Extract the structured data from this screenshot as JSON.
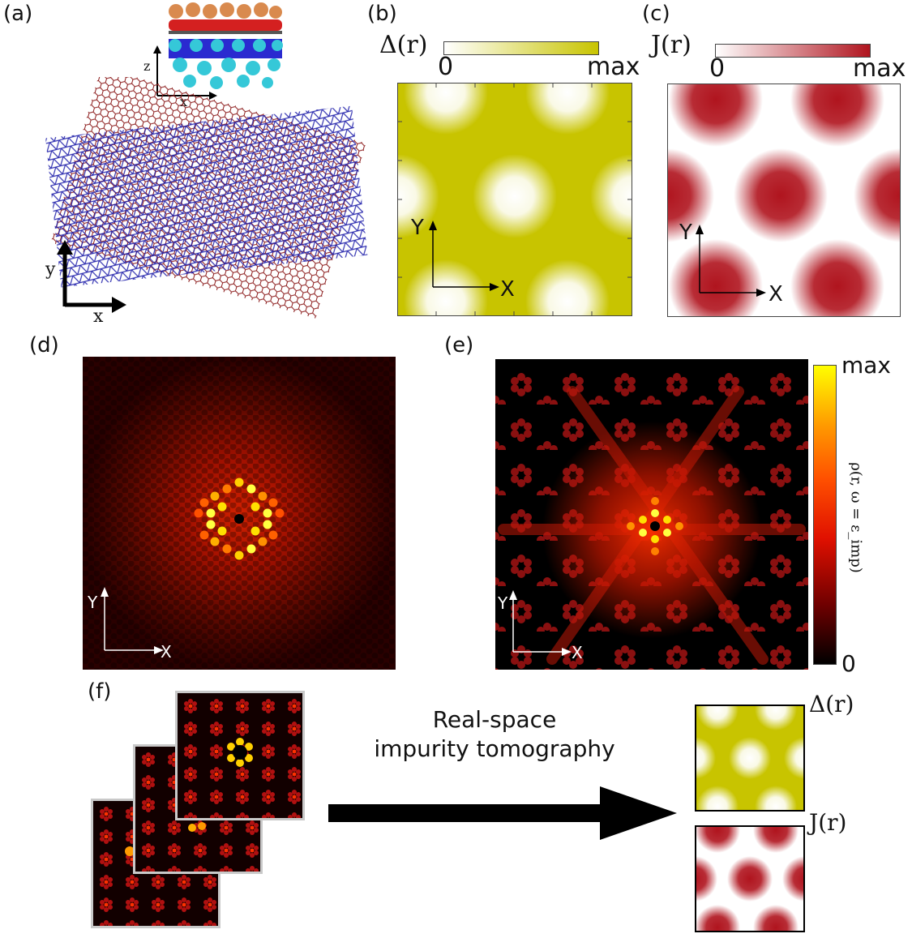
{
  "panels": {
    "a": {
      "label": "(a)",
      "inset_axes": {
        "z": "z",
        "x": "x"
      },
      "axes": {
        "y": "y",
        "x": "x"
      }
    },
    "b": {
      "label": "(b)",
      "quantity": "Δ(r)",
      "cb_min": "0",
      "cb_max": "max",
      "axes": {
        "y": "Y",
        "x": "X"
      }
    },
    "c": {
      "label": "(c)",
      "quantity": "J(r)",
      "cb_min": "0",
      "cb_max": "max",
      "axes": {
        "y": "Y",
        "x": "X"
      }
    },
    "d": {
      "label": "(d)",
      "axes": {
        "y": "Y",
        "x": "X"
      }
    },
    "e": {
      "label": "(e)",
      "cb_min": "0",
      "cb_max": "max",
      "cb_title": "ρ(r, ω = ε_imp)",
      "axes": {
        "y": "Y",
        "x": "X"
      }
    },
    "f": {
      "label": "(f)",
      "arrow_line1": "Real-space",
      "arrow_line2": "impurity tomography",
      "out_delta": "Δ(r)",
      "out_j": "J(r)"
    }
  },
  "colors": {
    "delta": "#c8c400",
    "j": "#b0141e",
    "ldos_dark": "#000000",
    "ldos_mid": "#cc1a00",
    "ldos_bright": "#ffff00",
    "lattice_red": "#8b1a1a",
    "lattice_blue": "#1a1aa8"
  }
}
